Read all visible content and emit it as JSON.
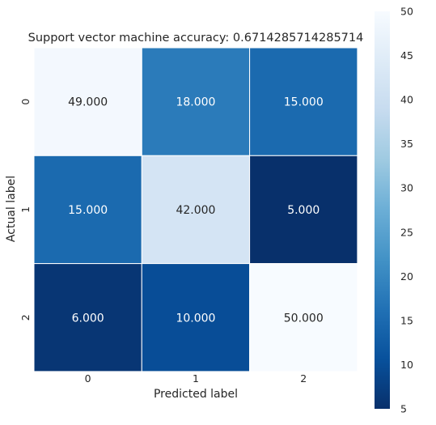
{
  "chart_data": {
    "type": "heatmap",
    "title": "Support vector machine accuracy: 0.6714285714285714",
    "xlabel": "Predicted label",
    "ylabel": "Actual label",
    "x_categories": [
      "0",
      "1",
      "2"
    ],
    "y_categories": [
      "0",
      "1",
      "2"
    ],
    "values": [
      [
        49,
        18,
        15
      ],
      [
        15,
        42,
        5
      ],
      [
        6,
        10,
        50
      ]
    ],
    "cell_labels": [
      [
        "49.000",
        "18.000",
        "15.000"
      ],
      [
        "15.000",
        "42.000",
        "5.000"
      ],
      [
        "6.000",
        "10.000",
        "50.000"
      ]
    ],
    "colormap": "Blues_r",
    "colorbar": {
      "range": [
        5,
        50
      ],
      "ticks": [
        5,
        10,
        15,
        20,
        25,
        30,
        35,
        40,
        45,
        50
      ],
      "tick_labels": [
        "5",
        "10",
        "15",
        "20",
        "25",
        "30",
        "35",
        "40",
        "45",
        "50"
      ],
      "placement": "right"
    },
    "grid": false
  }
}
